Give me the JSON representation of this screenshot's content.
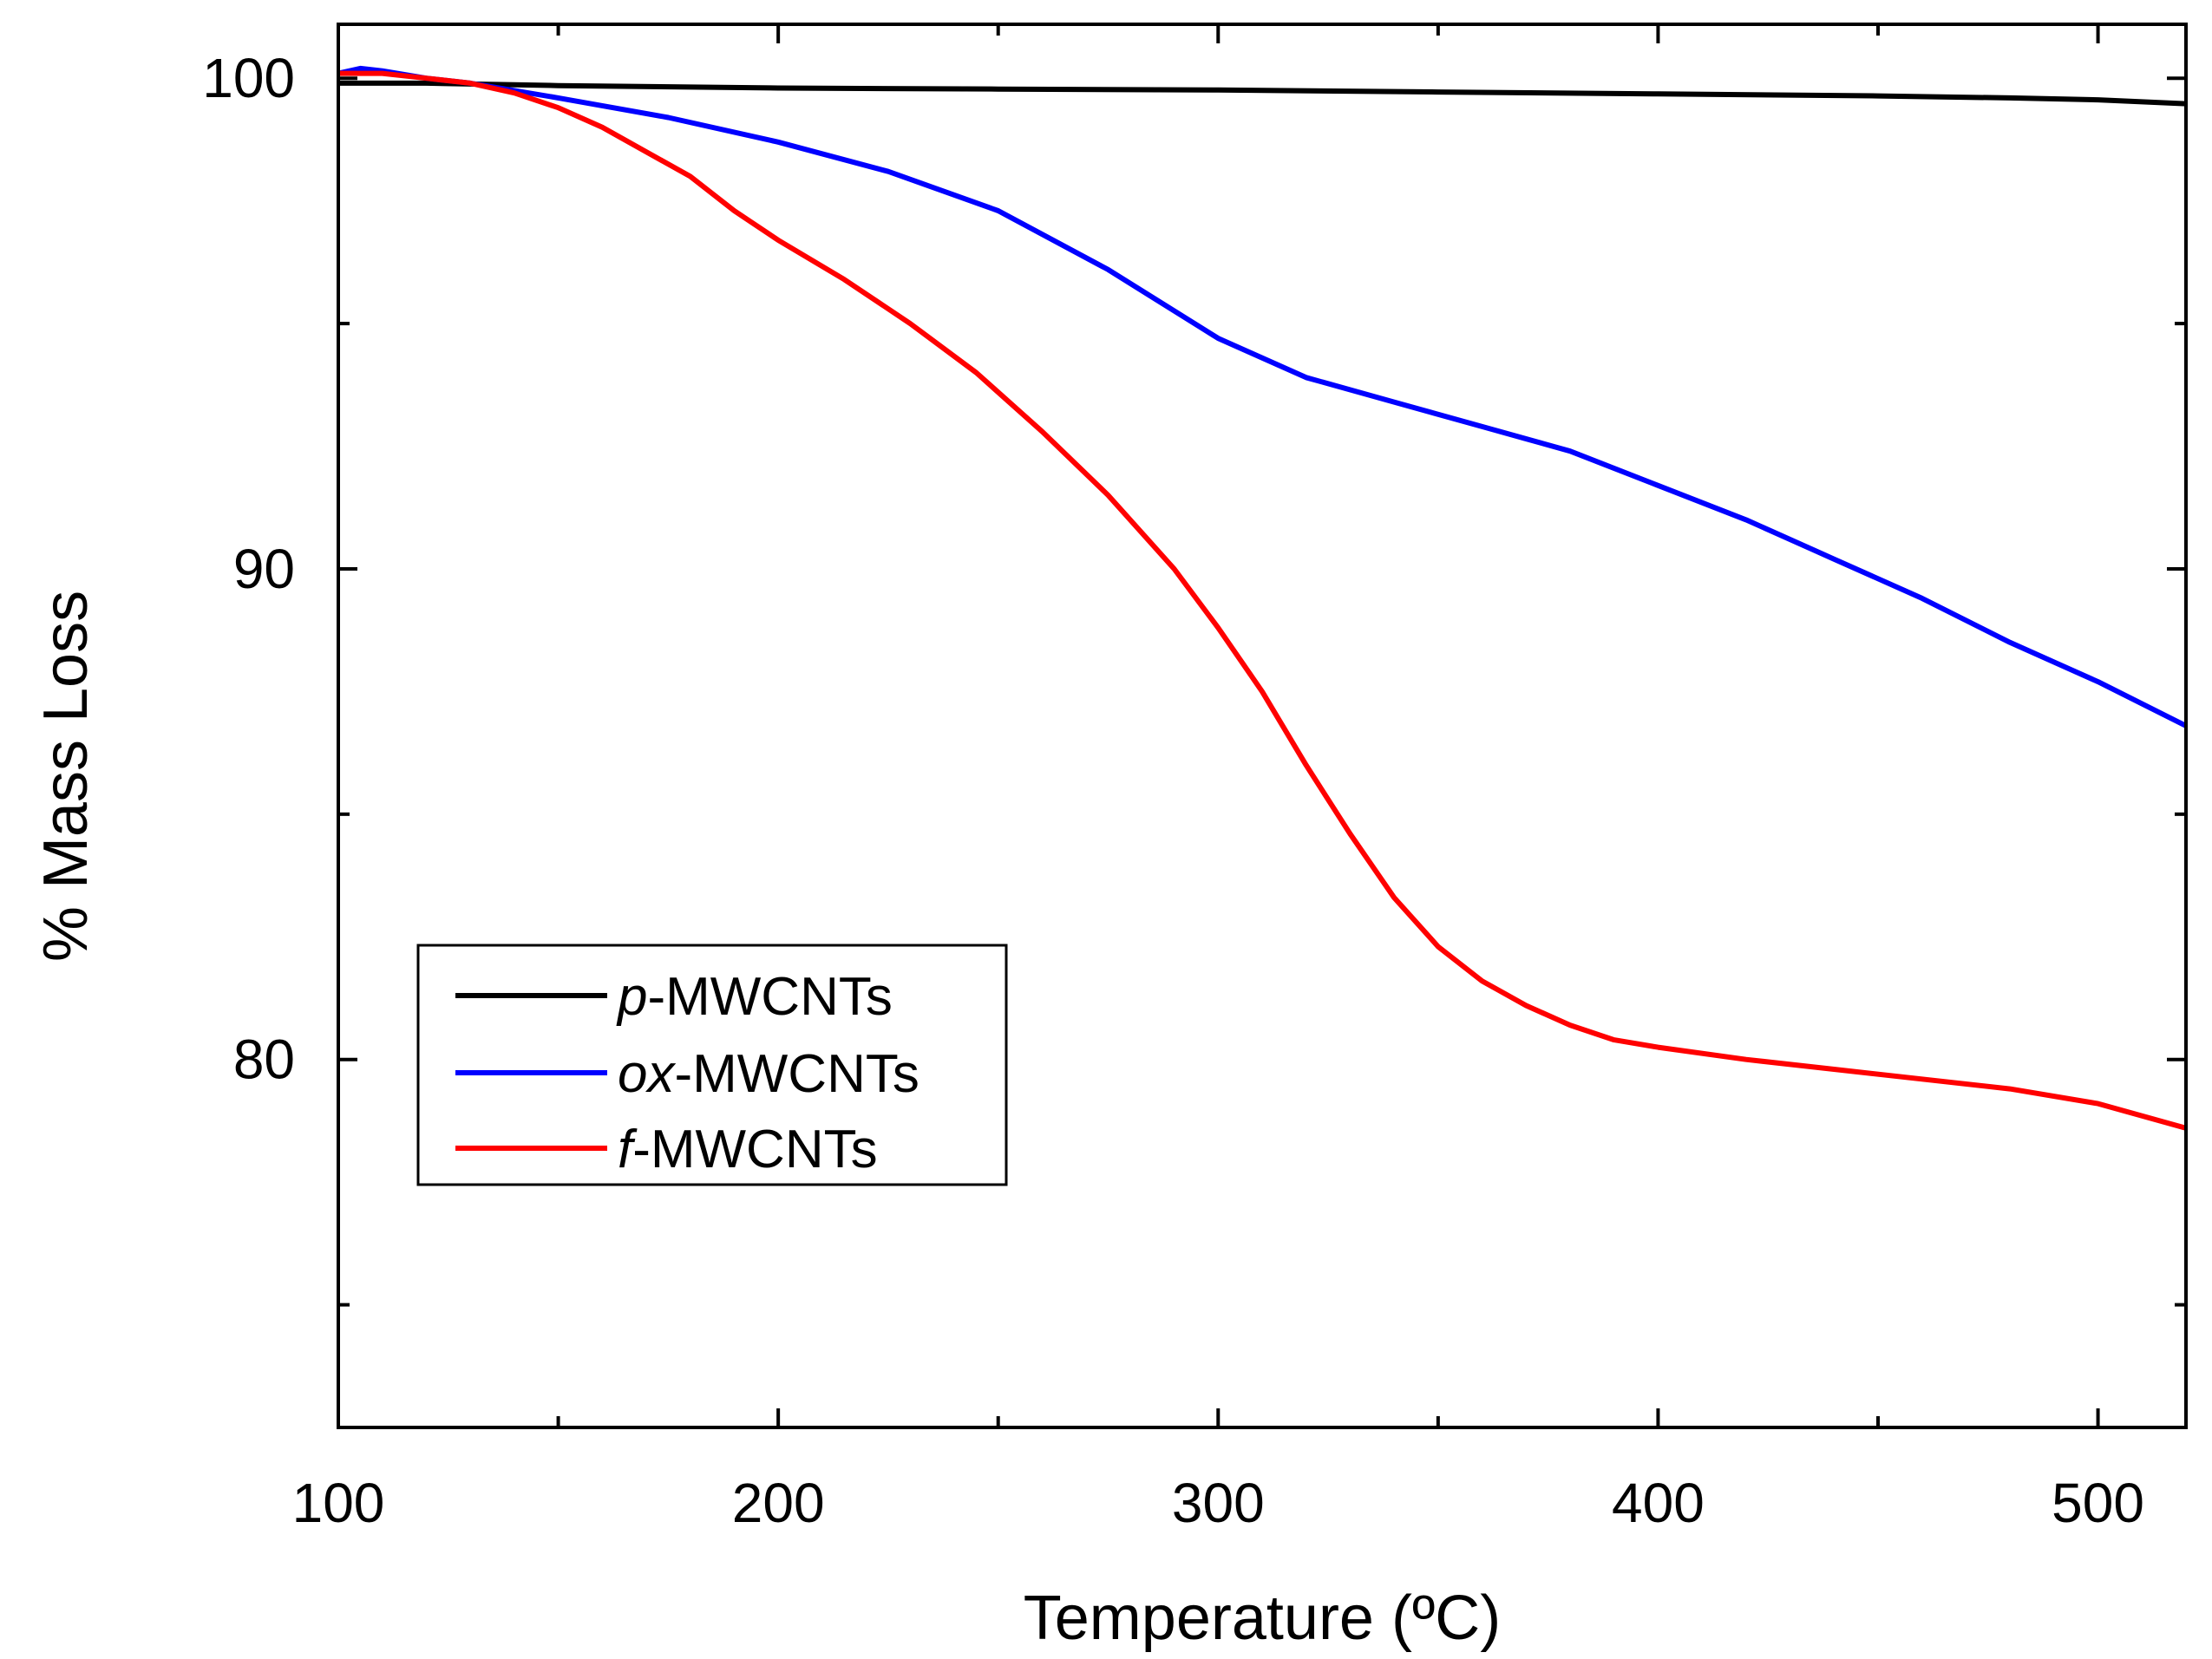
{
  "chart_data": {
    "type": "line",
    "title": "",
    "xlabel": "Temperature (ºC)",
    "ylabel": "% Mass Loss",
    "xlim": [
      100,
      520
    ],
    "ylim": [
      72.5,
      101.1
    ],
    "x_ticks": [
      {
        "value": 100,
        "label": "100"
      },
      {
        "value": 200,
        "label": "200"
      },
      {
        "value": 300,
        "label": "300"
      },
      {
        "value": 400,
        "label": "400"
      },
      {
        "value": 500,
        "label": "500"
      }
    ],
    "x_minor_ticks": [
      150,
      250,
      350,
      450
    ],
    "y_ticks": [
      {
        "value": 80,
        "label": "80"
      },
      {
        "value": 90,
        "label": "90"
      },
      {
        "value": 100,
        "label": "100"
      }
    ],
    "y_minor_ticks": [
      75,
      85,
      95
    ],
    "grid": false,
    "legend": {
      "position": "lower-left",
      "entries": [
        {
          "prefix": "p",
          "suffix": "-MWCNTs",
          "color": "#000000"
        },
        {
          "prefix": "ox",
          "suffix": "-MWCNTs",
          "color": "#0000ff"
        },
        {
          "prefix": "f",
          "suffix": "-MWCNTs",
          "color": "#ff0000"
        }
      ]
    },
    "series": [
      {
        "name": "p-MWCNTs",
        "color": "#000000",
        "x": [
          100,
          120,
          150,
          200,
          250,
          300,
          350,
          400,
          450,
          480,
          500,
          520
        ],
        "y": [
          99.9,
          99.9,
          99.85,
          99.8,
          99.78,
          99.76,
          99.72,
          99.68,
          99.64,
          99.6,
          99.56,
          99.48
        ]
      },
      {
        "name": "ox-MWCNTs",
        "color": "#0000ff",
        "x": [
          100,
          105,
          110,
          120,
          130,
          150,
          175,
          200,
          225,
          250,
          275,
          300,
          320,
          340,
          360,
          380,
          400,
          420,
          440,
          460,
          480,
          500,
          520
        ],
        "y": [
          100.1,
          100.2,
          100.15,
          100.0,
          99.9,
          99.6,
          99.2,
          98.7,
          98.1,
          97.3,
          96.1,
          94.7,
          93.9,
          93.4,
          92.9,
          92.4,
          91.7,
          91.0,
          90.2,
          89.4,
          88.5,
          87.7,
          86.8
        ]
      },
      {
        "name": "f-MWCNTs",
        "color": "#ff0000",
        "x": [
          100,
          110,
          120,
          130,
          140,
          150,
          160,
          170,
          180,
          190,
          200,
          215,
          230,
          245,
          260,
          275,
          290,
          300,
          310,
          320,
          330,
          340,
          350,
          360,
          370,
          380,
          390,
          400,
          420,
          440,
          460,
          480,
          500,
          520
        ],
        "y": [
          100.1,
          100.1,
          100.0,
          99.9,
          99.7,
          99.4,
          99.0,
          98.5,
          98.0,
          97.3,
          96.7,
          95.9,
          95.0,
          94.0,
          92.8,
          91.5,
          90.0,
          88.8,
          87.5,
          86.0,
          84.6,
          83.3,
          82.3,
          81.6,
          81.1,
          80.7,
          80.4,
          80.25,
          80.0,
          79.8,
          79.6,
          79.4,
          79.1,
          78.6
        ]
      }
    ]
  }
}
